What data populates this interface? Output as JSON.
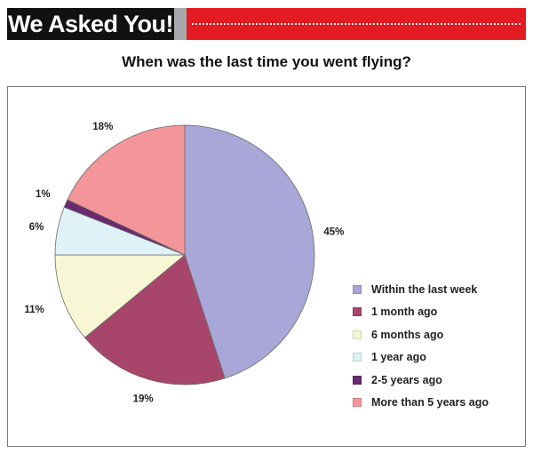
{
  "banner": {
    "title": "We Asked You!"
  },
  "chart_data": {
    "type": "pie",
    "title": "When was the last time you went flying?",
    "categories": [
      "Within the last week",
      "1 month ago",
      "6 months ago",
      "1 year ago",
      "2-5 years ago",
      "More than 5 years ago"
    ],
    "values": [
      45,
      19,
      11,
      6,
      1,
      18
    ],
    "value_labels": [
      "45%",
      "19%",
      "11%",
      "6%",
      "1%",
      "18%"
    ],
    "colors": [
      "#a9a6d8",
      "#a8456b",
      "#f7f7d6",
      "#dff2f7",
      "#6a2a6e",
      "#f4959a"
    ],
    "legend_position": "right"
  }
}
